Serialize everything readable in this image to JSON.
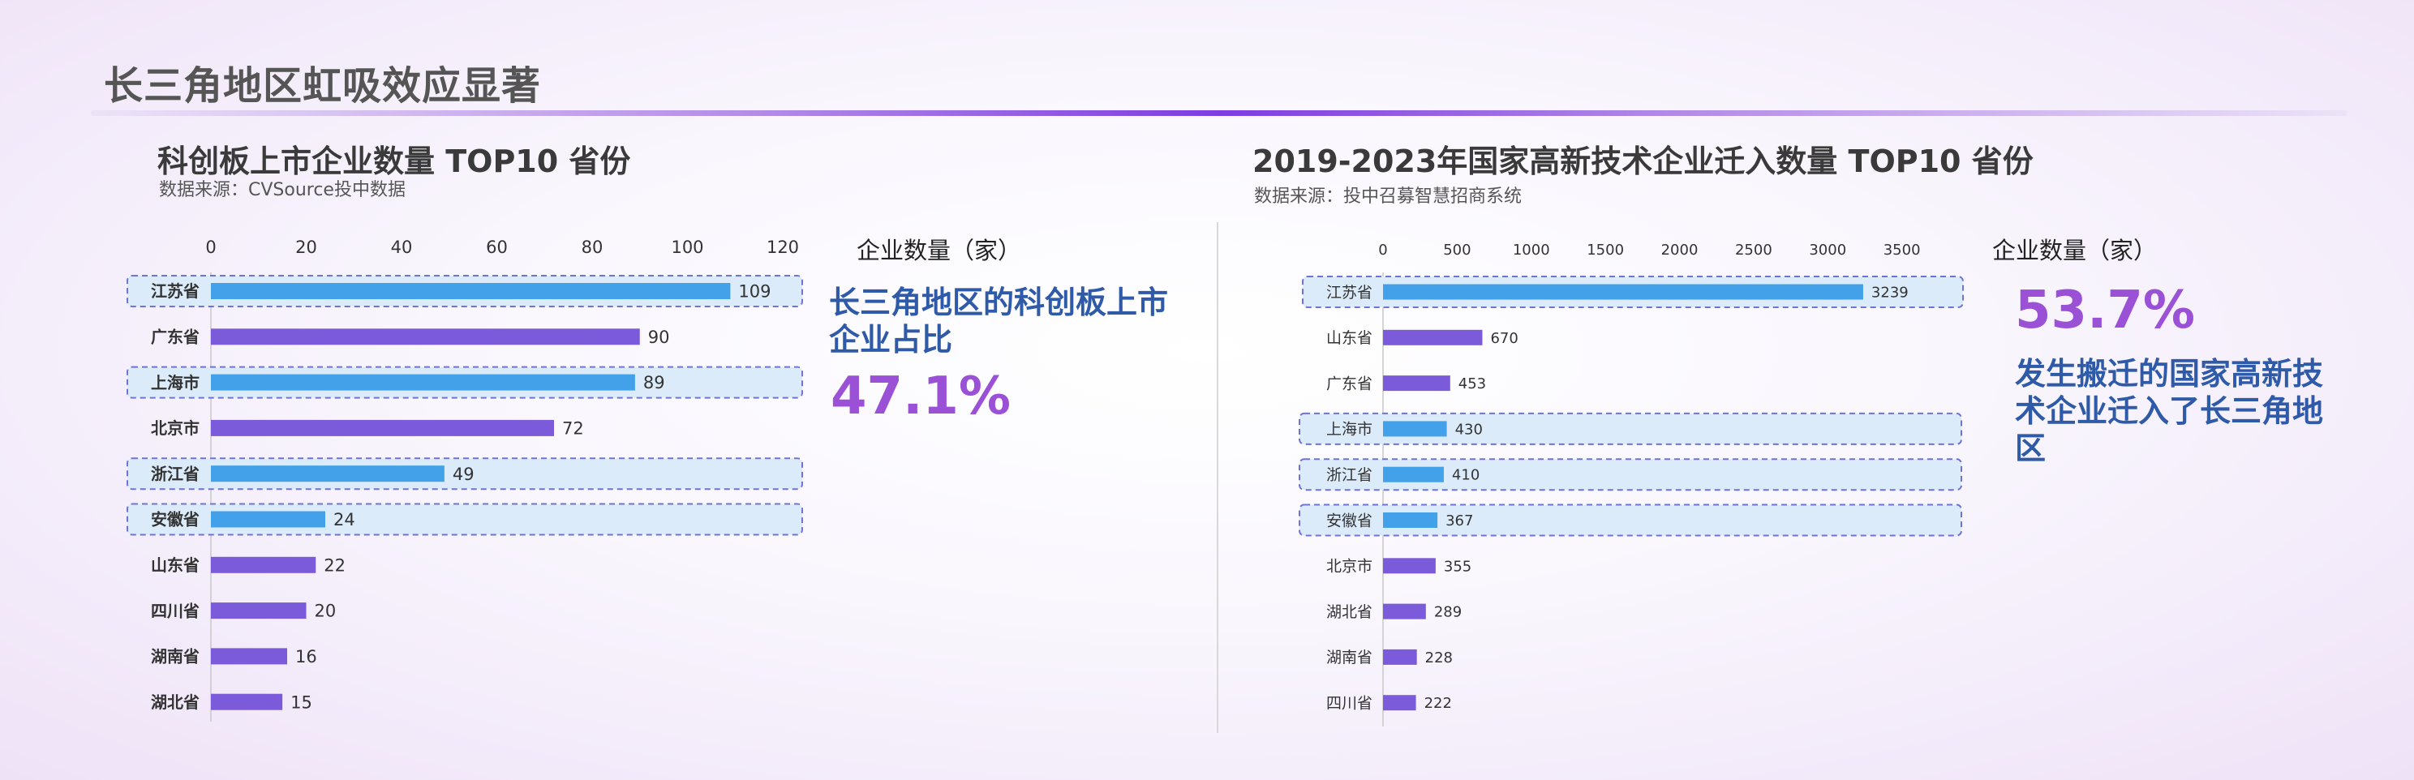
{
  "page_title": "长三角地区虹吸效应显著",
  "colors": {
    "highlight_bar": "#42a1e8",
    "normal_bar": "#7b5bd9",
    "highlight_box_fill": "#dcebfa",
    "highlight_box_stroke": "#6f73d6",
    "accent_purple": "#9b51d6",
    "accent_blue": "#2f5aa8"
  },
  "left": {
    "title": "科创板上市企业数量 TOP10 省份",
    "source": "数据来源：CVSource投中数据",
    "unit_label": "企业数量（家）",
    "callout": {
      "text": "长三角地区的科创板上市企业占比",
      "percent": "47.1%"
    }
  },
  "right": {
    "title": "2019-2023年国家高新技术企业迁入数量 TOP10 省份",
    "source": "数据来源：投中召募智慧招商系统",
    "unit_label": "企业数量（家）",
    "callout": {
      "text": "发生搬迁的国家高新技术企业迁入了长三角地区",
      "percent": "53.7%"
    }
  },
  "chart_data": [
    {
      "type": "bar",
      "orientation": "horizontal",
      "title": "科创板上市企业数量 TOP10 省份",
      "categories": [
        "江苏省",
        "广东省",
        "上海市",
        "北京市",
        "浙江省",
        "安徽省",
        "山东省",
        "四川省",
        "湖南省",
        "湖北省"
      ],
      "values": [
        109,
        90,
        89,
        72,
        49,
        24,
        22,
        20,
        16,
        15
      ],
      "highlighted": [
        "江苏省",
        "上海市",
        "浙江省",
        "安徽省"
      ],
      "xlim": [
        0,
        120
      ],
      "ticks": [
        0,
        20,
        40,
        60,
        80,
        100,
        120
      ],
      "xlabel": "企业数量（家）",
      "axis_position": "top",
      "grid": false
    },
    {
      "type": "bar",
      "orientation": "horizontal",
      "title": "2019-2023年国家高新技术企业迁入数量 TOP10 省份",
      "categories": [
        "江苏省",
        "山东省",
        "广东省",
        "上海市",
        "浙江省",
        "安徽省",
        "北京市",
        "湖北省",
        "湖南省",
        "四川省"
      ],
      "values": [
        3239,
        670,
        453,
        430,
        410,
        367,
        355,
        289,
        228,
        222
      ],
      "highlighted": [
        "江苏省",
        "上海市",
        "浙江省",
        "安徽省"
      ],
      "xlim": [
        0,
        4000
      ],
      "ticks": [
        0,
        500,
        1000,
        1500,
        2000,
        2500,
        3000,
        3500
      ],
      "xlabel": "企业数量（家）",
      "axis_position": "top",
      "grid": false
    }
  ]
}
